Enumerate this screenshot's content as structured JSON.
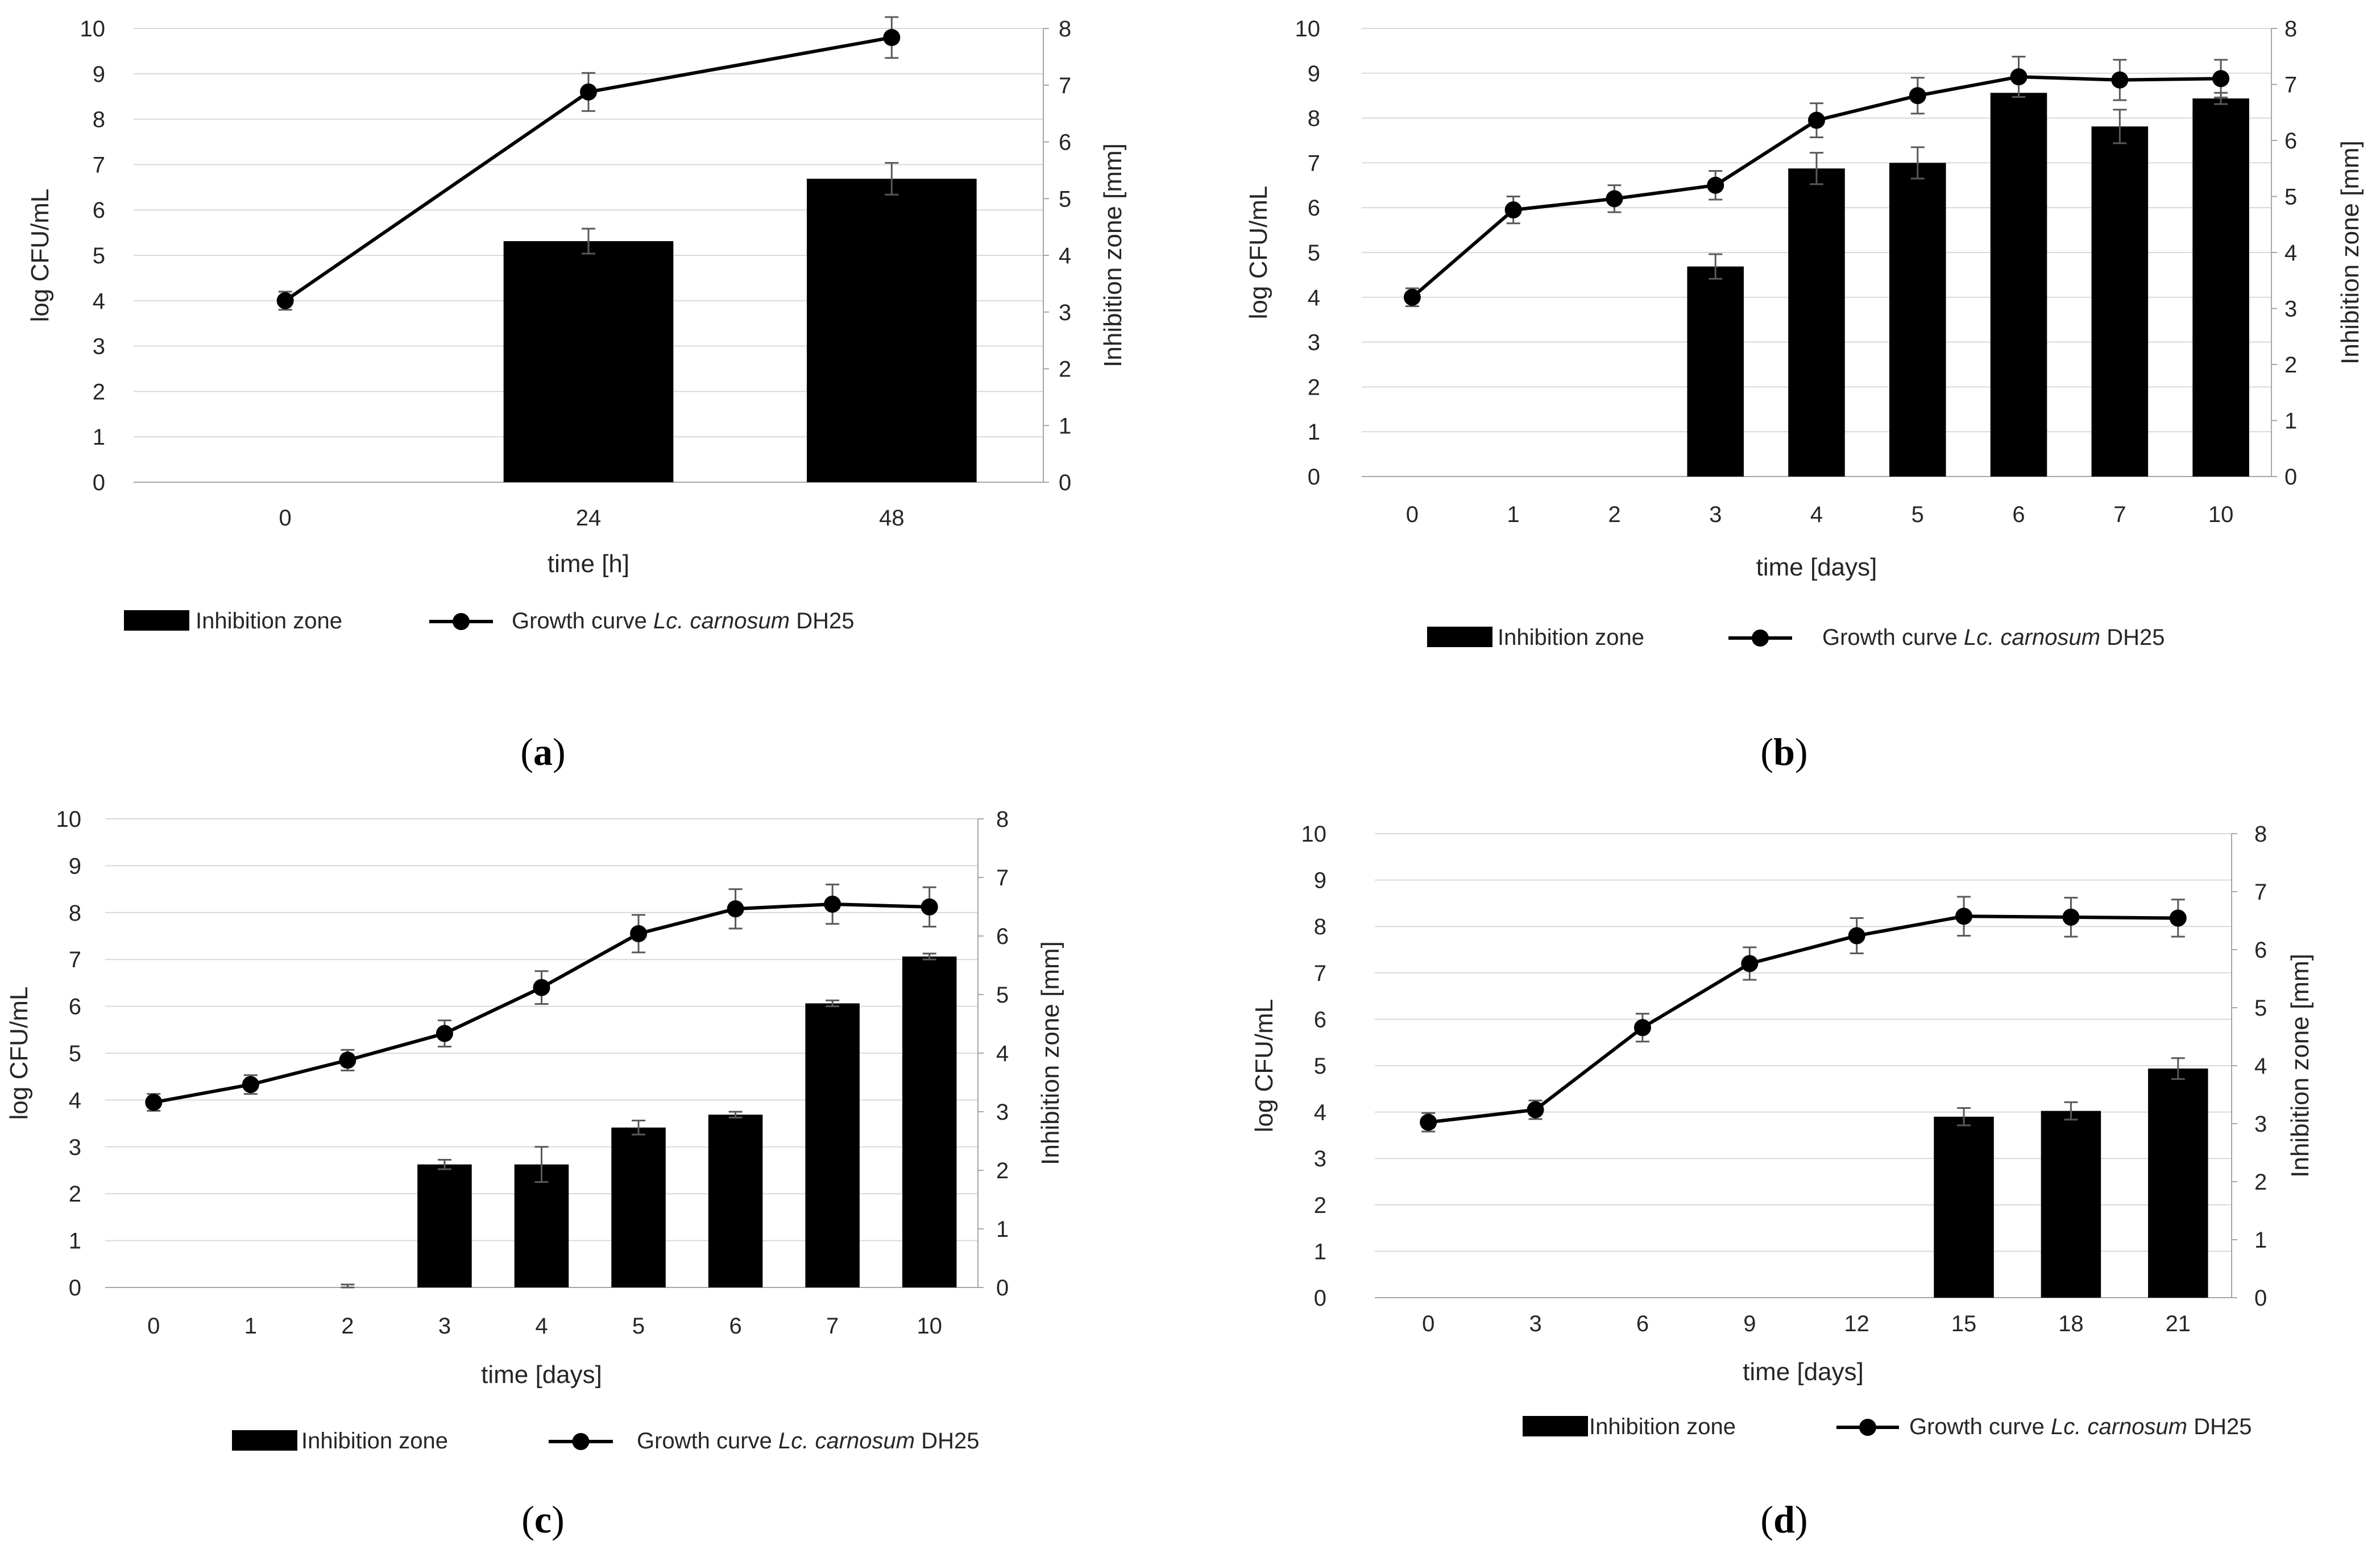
{
  "chart_data": [
    {
      "type": "bar+line",
      "panel_label": "(a)",
      "bold_label": "a",
      "categories": [
        "0",
        "24",
        "48"
      ],
      "xlabel": "time [h]",
      "ylabel_left": "log CFU/mL",
      "ylabel_right": "Inhibition zone [mm]",
      "ylim_left": [
        0,
        10
      ],
      "ylim_right": [
        0,
        8
      ],
      "left_ticks": [
        "0",
        "1",
        "2",
        "3",
        "4",
        "5",
        "6",
        "7",
        "8",
        "9",
        "10"
      ],
      "right_ticks": [
        "0",
        "1",
        "2",
        "3",
        "4",
        "5",
        "6",
        "7",
        "8"
      ],
      "grid": true,
      "legend_position": "bottom",
      "series": [
        {
          "name": "Inhibition zone",
          "kind": "bar",
          "axis": "right",
          "values": [
            0,
            4.25,
            5.35
          ],
          "errors": [
            0,
            0.22,
            0.28
          ]
        },
        {
          "name": "Growth curve Lc. carnosum DH25",
          "kind": "line",
          "axis": "left",
          "values": [
            4.0,
            8.6,
            9.8
          ],
          "errors": [
            0.2,
            0.42,
            0.45
          ]
        }
      ],
      "legend": {
        "bar": "Inhibition zone",
        "line_prefix": "Growth curve ",
        "line_italic": "Lc. carnosum",
        "line_suffix": " DH25"
      }
    },
    {
      "type": "bar+line",
      "panel_label": "(b)",
      "bold_label": "b",
      "categories": [
        "0",
        "1",
        "2",
        "3",
        "4",
        "5",
        "6",
        "7",
        "10"
      ],
      "xlabel": "time [days]",
      "ylabel_left": "log CFU/mL",
      "ylabel_right": "Inhibition zone [mm]",
      "ylim_left": [
        0,
        10
      ],
      "ylim_right": [
        0,
        8
      ],
      "left_ticks": [
        "0",
        "1",
        "2",
        "3",
        "4",
        "5",
        "6",
        "7",
        "8",
        "9",
        "10"
      ],
      "right_ticks": [
        "0",
        "1",
        "2",
        "3",
        "4",
        "5",
        "6",
        "7",
        "8"
      ],
      "grid": true,
      "legend_position": "bottom",
      "series": [
        {
          "name": "Inhibition zone",
          "kind": "bar",
          "axis": "right",
          "values": [
            0,
            0,
            0,
            3.75,
            5.5,
            5.6,
            6.85,
            6.25,
            6.75
          ],
          "errors": [
            0,
            0,
            0,
            0.22,
            0.28,
            0.28,
            0.0,
            0.3,
            0.1
          ]
        },
        {
          "name": "Growth curve Lc. carnosum DH25",
          "kind": "line",
          "axis": "left",
          "values": [
            4.0,
            5.95,
            6.2,
            6.5,
            7.95,
            8.5,
            8.92,
            8.85,
            8.88
          ],
          "errors": [
            0.2,
            0.3,
            0.3,
            0.32,
            0.38,
            0.4,
            0.45,
            0.45,
            0.42
          ]
        }
      ],
      "legend": {
        "bar": "Inhibition zone",
        "line_prefix": "Growth curve ",
        "line_italic": "Lc. carnosum",
        "line_suffix": " DH25"
      }
    },
    {
      "type": "bar+line",
      "panel_label": "(c)",
      "bold_label": "c",
      "categories": [
        "0",
        "1",
        "2",
        "3",
        "4",
        "5",
        "6",
        "7",
        "10"
      ],
      "xlabel": "time [days]",
      "ylabel_left": "log CFU/mL",
      "ylabel_right": "Inhibition zone [mm]",
      "ylim_left": [
        0,
        10
      ],
      "ylim_right": [
        0,
        8
      ],
      "left_ticks": [
        "0",
        "1",
        "2",
        "3",
        "4",
        "5",
        "6",
        "7",
        "8",
        "9",
        "10"
      ],
      "right_ticks": [
        "0",
        "1",
        "2",
        "3",
        "4",
        "5",
        "6",
        "7",
        "8"
      ],
      "grid": true,
      "legend_position": "bottom",
      "series": [
        {
          "name": "Inhibition zone",
          "kind": "bar",
          "axis": "right",
          "values": [
            0,
            0,
            0,
            2.1,
            2.1,
            2.73,
            2.95,
            4.85,
            5.65
          ],
          "errors": [
            0,
            0,
            0.05,
            0.08,
            0.3,
            0.12,
            0.05,
            0.05,
            0.05
          ]
        },
        {
          "name": "Growth curve Lc. carnosum DH25",
          "kind": "line",
          "axis": "left",
          "values": [
            3.95,
            4.33,
            4.85,
            5.42,
            6.4,
            7.55,
            8.08,
            8.18,
            8.12
          ],
          "errors": [
            0.18,
            0.2,
            0.22,
            0.28,
            0.35,
            0.4,
            0.42,
            0.42,
            0.42
          ]
        }
      ],
      "legend": {
        "bar": "Inhibition zone",
        "line_prefix": "Growth curve ",
        "line_italic": "Lc. carnosum",
        "line_suffix": " DH25"
      }
    },
    {
      "type": "bar+line",
      "panel_label": "(d)",
      "bold_label": "d",
      "categories": [
        "0",
        "3",
        "6",
        "9",
        "12",
        "15",
        "18",
        "21"
      ],
      "xlabel": "time [days]",
      "ylabel_left": "log CFU/mL",
      "ylabel_right": "Inhibition zone [mm]",
      "ylim_left": [
        0,
        10
      ],
      "ylim_right": [
        0,
        8
      ],
      "left_ticks": [
        "0",
        "1",
        "2",
        "3",
        "4",
        "5",
        "6",
        "7",
        "8",
        "9",
        "10"
      ],
      "right_ticks": [
        "0",
        "1",
        "2",
        "3",
        "4",
        "5",
        "6",
        "7",
        "8"
      ],
      "grid": true,
      "legend_position": "bottom",
      "series": [
        {
          "name": "Inhibition zone",
          "kind": "bar",
          "axis": "right",
          "values": [
            0,
            0,
            0,
            0,
            0,
            3.12,
            3.22,
            3.95
          ],
          "errors": [
            0,
            0,
            0,
            0,
            0,
            0.15,
            0.15,
            0.18
          ]
        },
        {
          "name": "Growth curve Lc. carnosum DH25",
          "kind": "line",
          "axis": "left",
          "values": [
            3.78,
            4.05,
            5.82,
            7.2,
            7.8,
            8.22,
            8.2,
            8.18
          ],
          "errors": [
            0.2,
            0.2,
            0.3,
            0.35,
            0.38,
            0.42,
            0.42,
            0.4
          ]
        }
      ],
      "legend": {
        "bar": "Inhibition zone",
        "line_prefix": "Growth curve ",
        "line_italic": "Lc. carnosum",
        "line_suffix": " DH25"
      }
    }
  ]
}
